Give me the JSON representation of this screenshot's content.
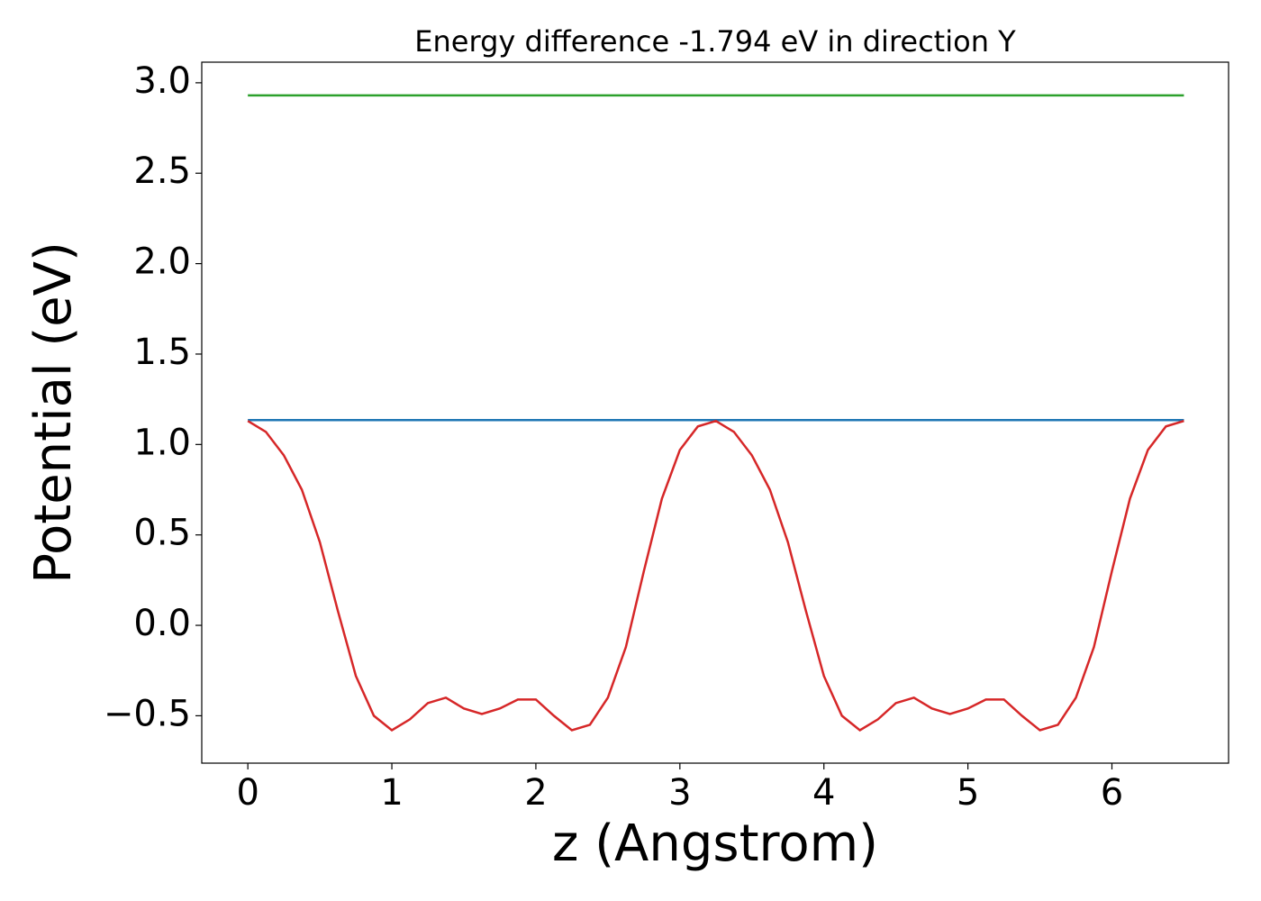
{
  "chart_data": {
    "type": "line",
    "title": "Energy difference -1.794 eV in direction Y",
    "x_label": "z (Angstrom)",
    "y_label": "Potential (eV)",
    "series": [
      {
        "color": "#d62728",
        "x": [
          0,
          0.125,
          0.25,
          0.375,
          0.5,
          0.625,
          0.75,
          0.875,
          1,
          1.125,
          1.25,
          1.375,
          1.5,
          1.625,
          1.75,
          1.875,
          2,
          2.125,
          2.25,
          2.375,
          2.5,
          2.625,
          2.75,
          2.875,
          3,
          3.125,
          3.25,
          3.375,
          3.5,
          3.625,
          3.75,
          3.875,
          4,
          4.125,
          4.25,
          4.375,
          4.5,
          4.625,
          4.75,
          4.875,
          5,
          5.125,
          5.25,
          5.375,
          5.5,
          5.625,
          5.75,
          5.875,
          6,
          6.125,
          6.25,
          6.375,
          6.5
        ],
        "values": [
          1.13,
          1.07,
          0.94,
          0.75,
          0.46,
          0.08,
          -0.28,
          -0.5,
          -0.58,
          -0.52,
          -0.43,
          -0.4,
          -0.46,
          -0.49,
          -0.46,
          -0.41,
          -0.41,
          -0.5,
          -0.58,
          -0.55,
          -0.4,
          -0.12,
          0.3,
          0.7,
          0.97,
          1.1,
          1.13,
          1.07,
          0.94,
          0.75,
          0.46,
          0.08,
          -0.28,
          -0.5,
          -0.58,
          -0.52,
          -0.43,
          -0.4,
          -0.46,
          -0.49,
          -0.46,
          -0.41,
          -0.41,
          -0.5,
          -0.58,
          -0.55,
          -0.4,
          -0.12,
          0.3,
          0.7,
          0.97,
          1.1,
          1.13
        ]
      },
      {
        "color": "#1f77b4",
        "x": [
          0,
          6.5
        ],
        "values": [
          1.135,
          1.135
        ]
      },
      {
        "color": "#2ca02c",
        "x": [
          0,
          6.5
        ],
        "values": [
          2.93,
          2.93
        ]
      }
    ],
    "xlim": [
      -0.32,
      6.81
    ],
    "ylim": [
      -0.762,
      3.114
    ],
    "xticks": [
      0,
      1,
      2,
      3,
      4,
      5,
      6
    ],
    "yticks": [
      {
        "value": -0.5,
        "label": "−0.5"
      },
      {
        "value": 0,
        "label": "0.0"
      },
      {
        "value": 0.5,
        "label": "0.5"
      },
      {
        "value": 1,
        "label": "1.0"
      },
      {
        "value": 1.5,
        "label": "1.5"
      },
      {
        "value": 2,
        "label": "2.0"
      },
      {
        "value": 2.5,
        "label": "2.5"
      },
      {
        "value": 3,
        "label": "3.0"
      }
    ]
  }
}
